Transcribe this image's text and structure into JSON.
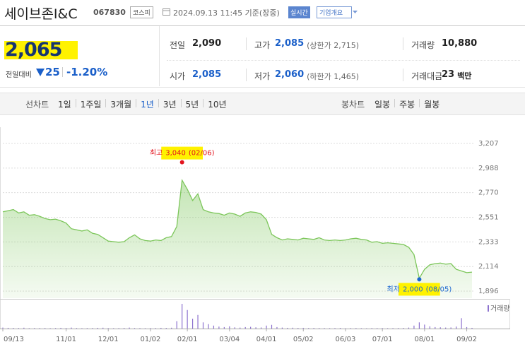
{
  "header": {
    "name": "세이브존I&C",
    "code": "067830",
    "market": "코스피",
    "datetime": "2024.09.13 11:45 기준(장중)",
    "realtime": "실시간",
    "overview": "기업개요"
  },
  "quote": {
    "price": "2,065",
    "change_caption": "전일대비",
    "change": "25",
    "change_pct": "-1.20%"
  },
  "stats": [
    {
      "label": "전일",
      "value": "2,090"
    },
    {
      "label": "고가",
      "value": "2,085",
      "note": "(상한가 2,715)"
    },
    {
      "label": "거래량",
      "value": "10,880"
    },
    {
      "label": "시가",
      "value": "2,085"
    },
    {
      "label": "저가",
      "value": "2,060",
      "note": "(하한가 1,465)"
    },
    {
      "label": "거래대금",
      "value": "23",
      "unit": "백만"
    }
  ],
  "tabs": {
    "line_label": "선차트",
    "periods": [
      "1일",
      "1주일",
      "3개월",
      "1년",
      "3년",
      "5년",
      "10년"
    ],
    "selected": 3,
    "candle_label": "봉차트",
    "candles": [
      "일봉",
      "주봉",
      "월봉"
    ]
  },
  "chart_data": {
    "type": "area",
    "color": "#7cc65a",
    "categories": [
      "09/13",
      null,
      null,
      null,
      null,
      null,
      null,
      null,
      null,
      null,
      null,
      null,
      "11/01",
      null,
      null,
      null,
      null,
      null,
      null,
      null,
      "12/01",
      null,
      null,
      null,
      null,
      null,
      null,
      null,
      "01/02",
      null,
      null,
      null,
      null,
      null,
      null,
      "02/01",
      null,
      null,
      null,
      null,
      null,
      null,
      null,
      "03/04",
      null,
      null,
      null,
      null,
      null,
      null,
      "04/01",
      null,
      null,
      null,
      null,
      null,
      null,
      "05/02",
      null,
      null,
      null,
      null,
      null,
      null,
      null,
      "06/03",
      null,
      null,
      null,
      null,
      null,
      null,
      "07/01",
      null,
      null,
      null,
      null,
      null,
      null,
      null,
      "08/01",
      null,
      null,
      null,
      null,
      null,
      null,
      null,
      "09/02",
      null
    ],
    "values": [
      2600,
      2610,
      2620,
      2590,
      2600,
      2570,
      2575,
      2560,
      2540,
      2530,
      2535,
      2520,
      2500,
      2450,
      2440,
      2430,
      2440,
      2410,
      2400,
      2370,
      2340,
      2335,
      2330,
      2335,
      2370,
      2395,
      2360,
      2345,
      2340,
      2350,
      2345,
      2370,
      2380,
      2470,
      2880,
      2800,
      2700,
      2760,
      2620,
      2600,
      2590,
      2585,
      2570,
      2590,
      2580,
      2560,
      2590,
      2600,
      2595,
      2580,
      2530,
      2400,
      2370,
      2350,
      2360,
      2355,
      2350,
      2365,
      2360,
      2355,
      2370,
      2350,
      2345,
      2350,
      2345,
      2350,
      2360,
      2365,
      2355,
      2350,
      2330,
      2335,
      2320,
      2325,
      2320,
      2315,
      2310,
      2285,
      2220,
      2010,
      2090,
      2130,
      2140,
      2145,
      2135,
      2140,
      2090,
      2075,
      2060,
      2065
    ],
    "ylim": [
      1896,
      3207
    ],
    "yticks": [
      {
        "value": 3207,
        "label": "3,207"
      },
      {
        "value": 2988,
        "label": "2,988"
      },
      {
        "value": 2770,
        "label": "2,770"
      },
      {
        "value": 2551,
        "label": "2,551"
      },
      {
        "value": 2333,
        "label": "2,333"
      },
      {
        "value": 2114,
        "label": "2,114"
      },
      {
        "value": 1896,
        "label": "1,896"
      }
    ],
    "grid": true,
    "annotations": [
      {
        "label": "최고",
        "value": 3040,
        "value_label": "3,040",
        "date": "(02/06)",
        "color": "#e3141e"
      },
      {
        "label": "최저",
        "value": 2000,
        "value_label": "2,000",
        "date": "(08/05)",
        "color": "#1a66d0"
      }
    ],
    "volume": {
      "name": "거래량",
      "color": "#8d72cf",
      "values": [
        40000,
        30000,
        25000,
        20000,
        35000,
        15000,
        20000,
        18000,
        22000,
        15000,
        20000,
        30000,
        25000,
        40000,
        20000,
        15000,
        18000,
        20000,
        30000,
        35000,
        20000,
        15000,
        18000,
        25000,
        40000,
        20000,
        18000,
        15000,
        22000,
        20000,
        30000,
        25000,
        35000,
        300000,
        1000000,
        750000,
        400000,
        550000,
        250000,
        180000,
        120000,
        80000,
        60000,
        90000,
        50000,
        40000,
        60000,
        70000,
        50000,
        45000,
        120000,
        150000,
        60000,
        40000,
        30000,
        35000,
        25000,
        30000,
        20000,
        25000,
        20000,
        18000,
        15000,
        20000,
        25000,
        15000,
        18000,
        20000,
        15000,
        12000,
        20000,
        18000,
        22000,
        15000,
        18000,
        20000,
        25000,
        40000,
        120000,
        250000,
        160000,
        90000,
        60000,
        50000,
        40000,
        45000,
        80000,
        420000,
        60000,
        30000
      ]
    }
  }
}
